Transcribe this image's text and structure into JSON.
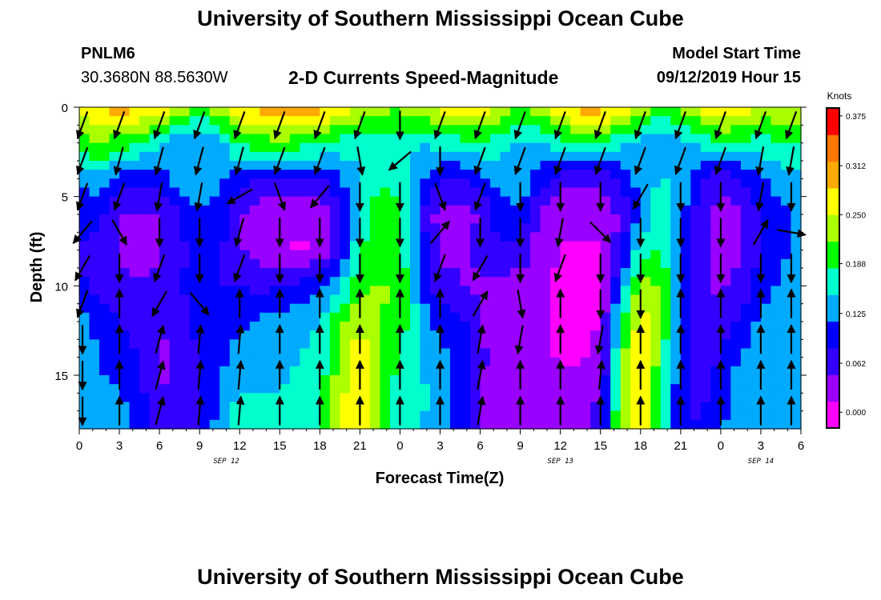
{
  "header": {
    "title": "University of Southern Mississippi Ocean Cube",
    "station_id": "PNLM6",
    "station_coords": "30.3680N 88.5630W",
    "plot_title": "2-D Currents Speed-Magnitude",
    "model_start_label": "Model Start Time",
    "model_start_value": "09/12/2019 Hour 15"
  },
  "footer": {
    "title": "University of Southern Mississippi Ocean Cube"
  },
  "chart_data": {
    "type": "heatmap",
    "xlabel": "Forecast Time(Z)",
    "ylabel": "Depth (ft)",
    "x_tick_labels": [
      "0",
      "3",
      "6",
      "9",
      "12",
      "15",
      "18",
      "21",
      "0",
      "3",
      "6",
      "9",
      "12",
      "15",
      "18",
      "21",
      "0",
      "3",
      "6"
    ],
    "x_range_hours": [
      0,
      54
    ],
    "date_labels": [
      {
        "label": "SEP 12",
        "at_hour": 11
      },
      {
        "label": "SEP 13",
        "at_hour": 36
      },
      {
        "label": "SEP 14",
        "at_hour": 51
      }
    ],
    "y_tick_labels": [
      "0",
      "5",
      "10",
      "15"
    ],
    "y_range": [
      0,
      18
    ],
    "y_inverted": true,
    "colorbar": {
      "title": "Knots",
      "tick_labels": [
        "0.375",
        "0.312",
        "0.250",
        "0.188",
        "0.125",
        "0.062",
        "0.000"
      ],
      "range": [
        -0.02,
        0.385
      ],
      "colors": [
        "#ff00ff",
        "#9900ff",
        "#3300ff",
        "#0000ff",
        "#00aaff",
        "#00ffcc",
        "#00ff00",
        "#aaff00",
        "#ffff00",
        "#ffaa00",
        "#ff7700",
        "#ff0000"
      ]
    },
    "speed_profiles": {
      "columns_hours": [
        0,
        1.5,
        3,
        4.5,
        6,
        7.5,
        9,
        10.5,
        12,
        13.5,
        15,
        16.5,
        18,
        19.5,
        21,
        22.5,
        24,
        25.5,
        27,
        28.5,
        30,
        31.5,
        33,
        34.5,
        36,
        37.5,
        39,
        40.5,
        42,
        43.5,
        45,
        46.5,
        48,
        49.5,
        51,
        52.5,
        54
      ],
      "depths_ft": [
        0,
        2,
        4,
        6,
        8,
        10,
        12,
        14,
        16,
        18
      ],
      "values_knots": [
        [
          0.26,
          0.2,
          0.12,
          0.1,
          0.08,
          0.09,
          0.13,
          0.15,
          0.16,
          0.14
        ],
        [
          0.28,
          0.22,
          0.14,
          0.09,
          0.07,
          0.06,
          0.1,
          0.11,
          0.12,
          0.13
        ],
        [
          0.3,
          0.2,
          0.1,
          0.05,
          0.04,
          0.06,
          0.08,
          0.1,
          0.12,
          0.14
        ],
        [
          0.29,
          0.18,
          0.09,
          0.04,
          0.03,
          0.05,
          0.06,
          0.08,
          0.09,
          0.1
        ],
        [
          0.28,
          0.16,
          0.1,
          0.05,
          0.04,
          0.06,
          0.05,
          0.04,
          0.05,
          0.06
        ],
        [
          0.26,
          0.12,
          0.13,
          0.08,
          0.07,
          0.08,
          0.06,
          0.05,
          0.05,
          0.06
        ],
        [
          0.2,
          0.11,
          0.14,
          0.11,
          0.1,
          0.1,
          0.1,
          0.08,
          0.07,
          0.08
        ],
        [
          0.24,
          0.13,
          0.12,
          0.1,
          0.09,
          0.08,
          0.09,
          0.1,
          0.12,
          0.13
        ],
        [
          0.28,
          0.19,
          0.1,
          0.05,
          0.05,
          0.08,
          0.11,
          0.13,
          0.15,
          0.17
        ],
        [
          0.3,
          0.2,
          0.08,
          0.03,
          0.03,
          0.07,
          0.12,
          0.14,
          0.15,
          0.16
        ],
        [
          0.31,
          0.21,
          0.07,
          0.02,
          0.02,
          0.08,
          0.13,
          0.14,
          0.15,
          0.16
        ],
        [
          0.31,
          0.2,
          0.07,
          0.02,
          0.01,
          0.09,
          0.14,
          0.15,
          0.16,
          0.17
        ],
        [
          0.3,
          0.19,
          0.08,
          0.02,
          0.02,
          0.1,
          0.15,
          0.16,
          0.17,
          0.18
        ],
        [
          0.28,
          0.17,
          0.11,
          0.06,
          0.08,
          0.14,
          0.21,
          0.23,
          0.24,
          0.25
        ],
        [
          0.25,
          0.16,
          0.15,
          0.16,
          0.18,
          0.21,
          0.25,
          0.27,
          0.28,
          0.28
        ],
        [
          0.23,
          0.17,
          0.18,
          0.2,
          0.21,
          0.22,
          0.22,
          0.21,
          0.2,
          0.2
        ],
        [
          0.22,
          0.16,
          0.17,
          0.19,
          0.2,
          0.21,
          0.2,
          0.18,
          0.17,
          0.16
        ],
        [
          0.24,
          0.15,
          0.12,
          0.09,
          0.1,
          0.12,
          0.14,
          0.15,
          0.16,
          0.15
        ],
        [
          0.27,
          0.16,
          0.08,
          0.03,
          0.04,
          0.06,
          0.1,
          0.12,
          0.13,
          0.13
        ],
        [
          0.27,
          0.17,
          0.08,
          0.03,
          0.04,
          0.05,
          0.09,
          0.11,
          0.11,
          0.1
        ],
        [
          0.27,
          0.18,
          0.1,
          0.05,
          0.06,
          0.04,
          0.05,
          0.06,
          0.05,
          0.05
        ],
        [
          0.24,
          0.16,
          0.13,
          0.1,
          0.08,
          0.03,
          0.02,
          0.02,
          0.02,
          0.03
        ],
        [
          0.2,
          0.14,
          0.14,
          0.11,
          0.07,
          0.03,
          0.02,
          0.02,
          0.02,
          0.03
        ],
        [
          0.24,
          0.15,
          0.1,
          0.04,
          0.03,
          0.02,
          0.02,
          0.02,
          0.03,
          0.04
        ],
        [
          0.28,
          0.17,
          0.06,
          0.02,
          0.01,
          0.01,
          0.01,
          0.01,
          0.02,
          0.03
        ],
        [
          0.3,
          0.18,
          0.05,
          0.02,
          0.01,
          0.0,
          0.0,
          0.01,
          0.02,
          0.04
        ],
        [
          0.3,
          0.18,
          0.06,
          0.02,
          0.01,
          0.01,
          0.01,
          0.03,
          0.05,
          0.07
        ],
        [
          0.28,
          0.16,
          0.09,
          0.05,
          0.07,
          0.12,
          0.17,
          0.2,
          0.22,
          0.23
        ],
        [
          0.24,
          0.14,
          0.13,
          0.12,
          0.17,
          0.23,
          0.27,
          0.28,
          0.28,
          0.28
        ],
        [
          0.2,
          0.12,
          0.15,
          0.17,
          0.19,
          0.21,
          0.22,
          0.2,
          0.18,
          0.17
        ],
        [
          0.22,
          0.14,
          0.14,
          0.13,
          0.13,
          0.12,
          0.11,
          0.1,
          0.09,
          0.09
        ],
        [
          0.26,
          0.16,
          0.09,
          0.06,
          0.06,
          0.06,
          0.06,
          0.06,
          0.07,
          0.08
        ],
        [
          0.28,
          0.18,
          0.06,
          0.03,
          0.03,
          0.04,
          0.06,
          0.08,
          0.1,
          0.11
        ],
        [
          0.27,
          0.18,
          0.08,
          0.04,
          0.04,
          0.06,
          0.09,
          0.12,
          0.14,
          0.14
        ],
        [
          0.24,
          0.17,
          0.11,
          0.08,
          0.08,
          0.1,
          0.12,
          0.14,
          0.15,
          0.15
        ],
        [
          0.25,
          0.18,
          0.13,
          0.11,
          0.11,
          0.12,
          0.13,
          0.14,
          0.14,
          0.14
        ],
        [
          0.26,
          0.19,
          0.14,
          0.12,
          0.12,
          0.12,
          0.13,
          0.13,
          0.13,
          0.13
        ]
      ]
    },
    "vectors": {
      "columns_hours": [
        0,
        3,
        6,
        9,
        12,
        15,
        18,
        21,
        24,
        27,
        30,
        33,
        36,
        39,
        42,
        45,
        48,
        51,
        54
      ],
      "depths_ft": [
        1,
        3,
        5,
        7,
        9,
        11,
        13,
        15,
        17
      ],
      "directions_deg": [
        [
          200,
          200,
          200,
          220,
          210,
          200,
          180,
          180,
          180
        ],
        [
          200,
          195,
          200,
          150,
          180,
          0,
          0,
          0,
          0
        ],
        [
          200,
          195,
          190,
          180,
          200,
          210,
          15,
          15,
          15
        ],
        [
          200,
          195,
          190,
          180,
          180,
          140,
          5,
          5,
          5
        ],
        [
          200,
          195,
          240,
          195,
          200,
          0,
          5,
          5,
          5
        ],
        [
          200,
          200,
          160,
          180,
          180,
          0,
          0,
          0,
          0
        ],
        [
          200,
          200,
          220,
          180,
          180,
          0,
          0,
          0,
          0
        ],
        [
          200,
          170,
          180,
          180,
          180,
          0,
          0,
          0,
          0
        ],
        [
          180,
          230,
          180,
          180,
          180,
          0,
          0,
          0,
          0
        ],
        [
          200,
          180,
          160,
          40,
          200,
          0,
          0,
          0,
          0
        ],
        [
          200,
          200,
          200,
          180,
          210,
          30,
          10,
          10,
          10
        ],
        [
          200,
          200,
          180,
          180,
          180,
          170,
          190,
          0,
          0
        ],
        [
          200,
          200,
          180,
          190,
          200,
          0,
          0,
          0,
          0
        ],
        [
          200,
          200,
          180,
          135,
          180,
          180,
          190,
          5,
          0
        ],
        [
          200,
          200,
          210,
          180,
          180,
          180,
          0,
          0,
          0
        ],
        [
          200,
          200,
          180,
          180,
          180,
          0,
          0,
          0,
          0
        ],
        [
          200,
          200,
          180,
          180,
          180,
          0,
          0,
          0,
          0
        ],
        [
          200,
          190,
          190,
          30,
          180,
          0,
          0,
          0,
          0
        ],
        [
          200,
          190,
          180,
          100,
          180,
          0,
          0,
          0,
          0
        ]
      ]
    }
  }
}
